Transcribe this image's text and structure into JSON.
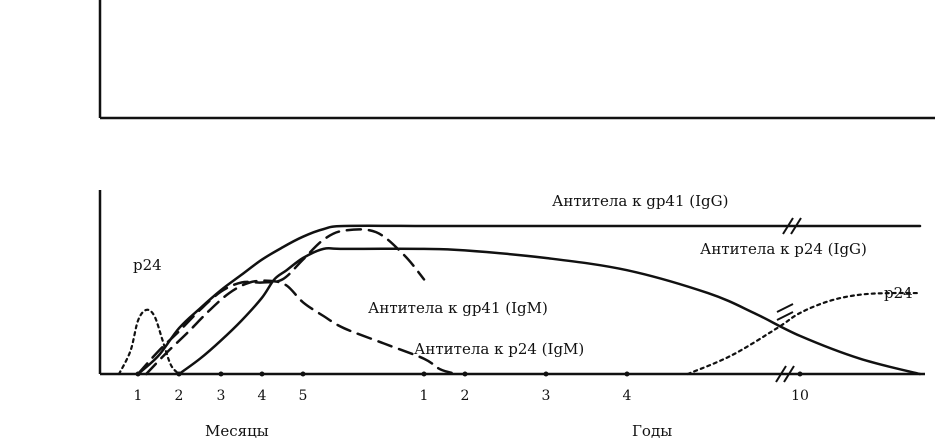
{
  "chart_data": [
    {
      "type": "line",
      "title": "",
      "xlabel": "",
      "ylabel": "",
      "series": []
    },
    {
      "type": "line",
      "title": "",
      "xlabel_months": "Месяцы",
      "xlabel_years": "Годы",
      "ylabel": "",
      "month_ticks": [
        "1",
        "2",
        "3",
        "4",
        "5"
      ],
      "year_ticks": [
        "1",
        "2",
        "3",
        "4",
        "10"
      ],
      "series": [
        {
          "name": "p24",
          "style": "dotted",
          "x": [
            0.5,
            0.8,
            1.0,
            1.2,
            1.4,
            1.6,
            1.8,
            2.0
          ],
          "y": [
            0,
            0.15,
            0.35,
            0.42,
            0.38,
            0.22,
            0.06,
            0
          ]
        },
        {
          "name": "Антитела к gp41 (IgG)",
          "style": "solid",
          "x": [
            1.0,
            1.5,
            2.0,
            2.5,
            3.0,
            3.5,
            4.0,
            4.5,
            5.0,
            5.5,
            6.0,
            8,
            10,
            12,
            14,
            16,
            18,
            20
          ],
          "y": [
            0,
            0.12,
            0.3,
            0.43,
            0.55,
            0.65,
            0.75,
            0.83,
            0.9,
            0.95,
            0.97,
            0.97,
            0.97,
            0.97,
            0.97,
            0.97,
            0.97,
            0.97
          ]
        },
        {
          "name": "Антитела к p24 (IgG)",
          "style": "solid",
          "x": [
            2.0,
            2.5,
            3.0,
            3.5,
            4.0,
            4.3,
            4.6,
            5.0,
            5.5,
            6.0,
            8,
            10,
            12,
            14,
            16,
            17,
            18,
            19,
            20
          ],
          "y": [
            0,
            0.1,
            0.22,
            0.35,
            0.5,
            0.62,
            0.68,
            0.76,
            0.82,
            0.82,
            0.82,
            0.81,
            0.76,
            0.68,
            0.53,
            0.4,
            0.25,
            0.1,
            0
          ]
        },
        {
          "name": "Антитела к gp41 (IgM)",
          "style": "dashed",
          "x": [
            1.0,
            1.5,
            2.0,
            2.5,
            3.0,
            3.5,
            4.0,
            4.5,
            5.0,
            5.5,
            6.0,
            6.8,
            7.5,
            8.0
          ],
          "y": [
            0,
            0.15,
            0.28,
            0.42,
            0.54,
            0.6,
            0.6,
            0.62,
            0.75,
            0.88,
            0.94,
            0.93,
            0.78,
            0.62
          ]
        },
        {
          "name": "Антитела к p24 (IgM)",
          "style": "dashed",
          "x": [
            1.2,
            1.7,
            2.2,
            2.7,
            3.2,
            3.7,
            4.2,
            4.6,
            5.0,
            5.5,
            6.0,
            7.0,
            8.0,
            8.8,
            9.6
          ],
          "y": [
            0,
            0.14,
            0.27,
            0.41,
            0.53,
            0.6,
            0.61,
            0.58,
            0.47,
            0.38,
            0.3,
            0.2,
            0.1,
            0.03,
            0
          ]
        },
        {
          "name": "p24",
          "style": "dotted",
          "x": [
            15.5,
            16.5,
            17.5,
            18.0,
            18.5,
            19.0,
            19.5,
            20.0
          ],
          "y": [
            0,
            0.12,
            0.3,
            0.4,
            0.48,
            0.52,
            0.53,
            0.53
          ]
        }
      ]
    }
  ]
}
